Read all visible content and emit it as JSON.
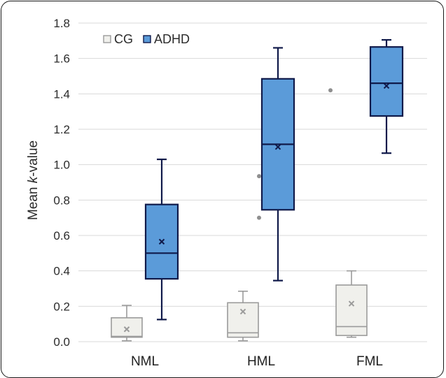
{
  "chart_data": {
    "type": "boxplot",
    "categories": [
      "NML",
      "HML",
      "FML"
    ],
    "ylabel_prefix": "Mean ",
    "ylabel_italic": "k",
    "ylabel_suffix": "-value",
    "ylim": [
      0,
      1.8
    ],
    "yticks": [
      "0.0",
      "0.2",
      "0.4",
      "0.6",
      "0.8",
      "1.0",
      "1.2",
      "1.4",
      "1.6",
      "1.8"
    ],
    "grid": true,
    "legend_position": "top-left",
    "series": [
      {
        "name": "CG",
        "color": "#f0f0ec",
        "edge": "#9b9b9b",
        "boxes": [
          {
            "min": 0.005,
            "q1": 0.025,
            "median": 0.03,
            "q3": 0.135,
            "max": 0.205,
            "mean": 0.07,
            "outliers": []
          },
          {
            "min": 0.005,
            "q1": 0.025,
            "median": 0.05,
            "q3": 0.22,
            "max": 0.285,
            "mean": 0.17,
            "outliers": []
          },
          {
            "min": 0.025,
            "q1": 0.035,
            "median": 0.085,
            "q3": 0.32,
            "max": 0.4,
            "mean": 0.215,
            "outliers": [
              1.42
            ]
          }
        ]
      },
      {
        "name": "ADHD",
        "color": "#5b9bd9",
        "edge": "#101a4a",
        "boxes": [
          {
            "min": 0.125,
            "q1": 0.355,
            "median": 0.5,
            "q3": 0.775,
            "max": 1.03,
            "mean": 0.565,
            "outliers": []
          },
          {
            "min": 0.345,
            "q1": 0.745,
            "median": 1.115,
            "q3": 1.485,
            "max": 1.66,
            "mean": 1.1,
            "outliers": [
              0.935,
              0.7
            ]
          },
          {
            "min": 1.065,
            "q1": 1.275,
            "median": 1.46,
            "q3": 1.665,
            "max": 1.705,
            "mean": 1.445,
            "outliers": []
          }
        ]
      }
    ]
  }
}
